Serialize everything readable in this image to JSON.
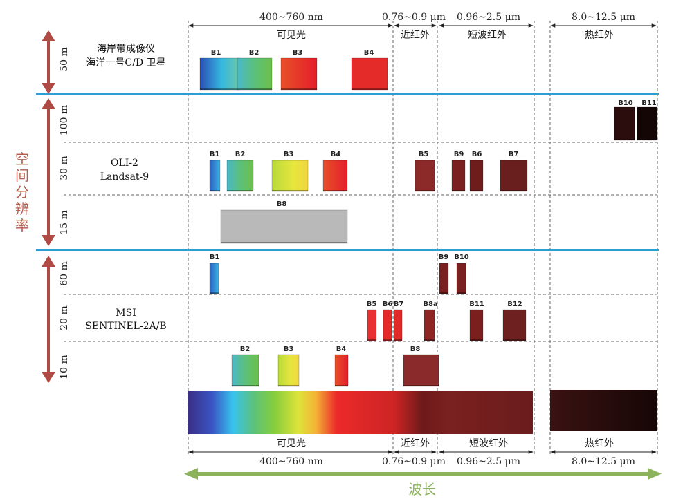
{
  "top_ranges": [
    {
      "key": "vis",
      "text": "400~760 nm"
    },
    {
      "key": "nir",
      "text": "0.76~0.9 μm"
    },
    {
      "key": "swir",
      "text": "0.96~2.5 μm"
    },
    {
      "key": "tir",
      "text": "8.0~12.5 μm"
    }
  ],
  "regions": [
    {
      "key": "vis",
      "text": "可见光"
    },
    {
      "key": "nir",
      "text": "近红外"
    },
    {
      "key": "swir",
      "text": "短波红外"
    },
    {
      "key": "tir",
      "text": "热红外"
    }
  ],
  "y_axis_title": [
    "空",
    "间",
    "分",
    "辨",
    "率"
  ],
  "x_axis_title": "波长",
  "sensors": [
    {
      "key": "hy1",
      "lines": [
        "海岸带成像仪",
        "海洋一号C/D 卫星"
      ]
    },
    {
      "key": "oli",
      "lines": [
        "OLI-2",
        "Landsat-9"
      ]
    },
    {
      "key": "msi",
      "lines": [
        "MSI",
        "SENTINEL-2A/B"
      ]
    }
  ],
  "resolutions": [
    {
      "key": "r50",
      "text": "50 m"
    },
    {
      "key": "r100",
      "text": "100 m"
    },
    {
      "key": "r30",
      "text": "30 m"
    },
    {
      "key": "r15",
      "text": "15 m"
    },
    {
      "key": "r60",
      "text": "60 m"
    },
    {
      "key": "r20",
      "text": "20 m"
    },
    {
      "key": "r10",
      "text": "10 m"
    }
  ],
  "bands": [
    {
      "key": "hy-b1",
      "label": "B1",
      "fill": "grad-blue-cyan"
    },
    {
      "key": "hy-b2",
      "label": "B2",
      "fill": "grad-cyan-green"
    },
    {
      "key": "hy-b3",
      "label": "B3",
      "fill": "grad-red"
    },
    {
      "key": "hy-b4",
      "label": "B4",
      "fill": "#e52a2a"
    },
    {
      "key": "oli-b10",
      "label": "B10",
      "fill": "#2c0d0d"
    },
    {
      "key": "oli-b11",
      "label": "B11",
      "fill": "#150606"
    },
    {
      "key": "oli-b1",
      "label": "B1",
      "fill": "grad-blue"
    },
    {
      "key": "oli-b2",
      "label": "B2",
      "fill": "grad-cyan-green"
    },
    {
      "key": "oli-b3",
      "label": "B3",
      "fill": "grad-yellow"
    },
    {
      "key": "oli-b4",
      "label": "B4",
      "fill": "grad-red"
    },
    {
      "key": "oli-b5",
      "label": "B5",
      "fill": "#8c2a2a"
    },
    {
      "key": "oli-b9",
      "label": "B9",
      "fill": "#7a2020"
    },
    {
      "key": "oli-b6",
      "label": "B6",
      "fill": "#6e1c1c"
    },
    {
      "key": "oli-b7",
      "label": "B7",
      "fill": "#6a1f1f"
    },
    {
      "key": "oli-b8",
      "label": "B8",
      "fill": "#b9b9b9"
    },
    {
      "key": "msi-b1",
      "label": "B1",
      "fill": "grad-blue"
    },
    {
      "key": "msi-b9",
      "label": "B9",
      "fill": "#7a2020"
    },
    {
      "key": "msi-b10",
      "label": "B10",
      "fill": "#7a2020"
    },
    {
      "key": "msi-b5",
      "label": "B5",
      "fill": "#e83030"
    },
    {
      "key": "msi-b6",
      "label": "B6",
      "fill": "#e52828"
    },
    {
      "key": "msi-b7",
      "label": "B7",
      "fill": "#e02a2a"
    },
    {
      "key": "msi-b8a",
      "label": "B8a",
      "fill": "#8e2626"
    },
    {
      "key": "msi-b11",
      "label": "B11",
      "fill": "#7a1e1e"
    },
    {
      "key": "msi-b12",
      "label": "B12",
      "fill": "#6e1f1f"
    },
    {
      "key": "msi-b2",
      "label": "B2",
      "fill": "grad-cyan-green"
    },
    {
      "key": "msi-b3",
      "label": "B3",
      "fill": "grad-yellow"
    },
    {
      "key": "msi-b4",
      "label": "B4",
      "fill": "grad-red"
    },
    {
      "key": "msi-b8",
      "label": "B8",
      "fill": "#8a2a2a"
    }
  ],
  "colors": {
    "separator": "#2a9fd6",
    "resolution_arrow": "#b04a45",
    "wavelength_arrow": "#8cb35c",
    "dashed_line": "#666666"
  }
}
